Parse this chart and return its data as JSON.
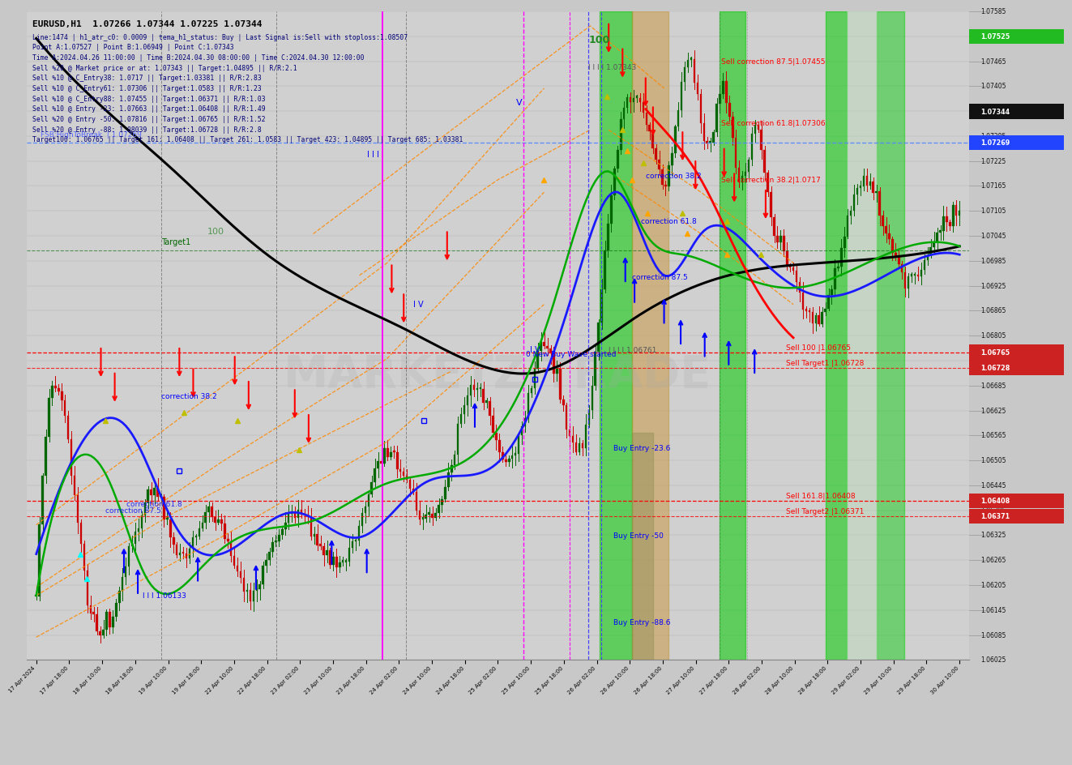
{
  "title": "EURUSD,H1  1.07266 1.07344 1.07225 1.07344",
  "info_lines": [
    "Line:1474 | h1_atr_c0: 0.0009 | tema_h1_status: Buy | Last Signal is:Sell with stoploss:1.08507",
    "Point A:1.07527 | Point B:1.06949 | Point C:1.07343",
    "Time A:2024.04.26 11:00:00 | Time B:2024.04.30 08:00:00 | Time C:2024.04.30 12:00:00",
    "Sell %20 @ Market price or at: 1.07343 || Target:1.04895 || R/R:2.1",
    "Sell %10 @ C_Entry38: 1.0717 || Target:1.03381 || R/R:2.83",
    "Sell %10 @ C_Entry61: 1.07306 || Target:1.0583 || R/R:1.23",
    "Sell %10 @ C_Entry88: 1.07455 || Target:1.06371 || R/R:1.03",
    "Sell %10 @ Entry -23: 1.07663 || Target:1.06408 || R/R:1.49",
    "Sell %20 @ Entry -50: 1.07816 || Target:1.06765 || R/R:1.52",
    "Sell %20 @ Entry -88: 1.08039 || Target:1.06728 || R/R:2.8",
    "Target100: 1.06765 || Target 161: 1.06408 || Target 261: 1.0583 || Target 423: 1.04895 || Target 685: 1.03381"
  ],
  "y_min": 1.06025,
  "y_max": 1.07585,
  "price_current": 1.07344,
  "price_fsb": 1.07269,
  "price_sell100": 1.06765,
  "price_sell_target1": 1.06728,
  "price_sell161": 1.06408,
  "price_sell_target2": 1.06371,
  "price_green_label": 1.07525,
  "watermark_text": "MARKETZITRADE",
  "x_labels": [
    "17 Apr 2024",
    "17 Apr 18:00",
    "18 Apr 10:00",
    "18 Apr 18:00",
    "19 Apr 10:00",
    "19 Apr 18:00",
    "22 Apr 10:00",
    "22 Apr 18:00",
    "23 Apr 02:00",
    "23 Apr 10:00",
    "23 Apr 18:00",
    "24 Apr 02:00",
    "24 Apr 10:00",
    "24 Apr 18:00",
    "25 Apr 02:00",
    "25 Apr 10:00",
    "25 Apr 18:00",
    "26 Apr 02:00",
    "26 Apr 10:00",
    "26 Apr 18:00",
    "27 Apr 10:00",
    "27 Apr 18:00",
    "28 Apr 02:00",
    "28 Apr 10:00",
    "28 Apr 18:00",
    "29 Apr 02:00",
    "29 Apr 10:00",
    "29 Apr 18:00",
    "30 Apr 10:00"
  ]
}
